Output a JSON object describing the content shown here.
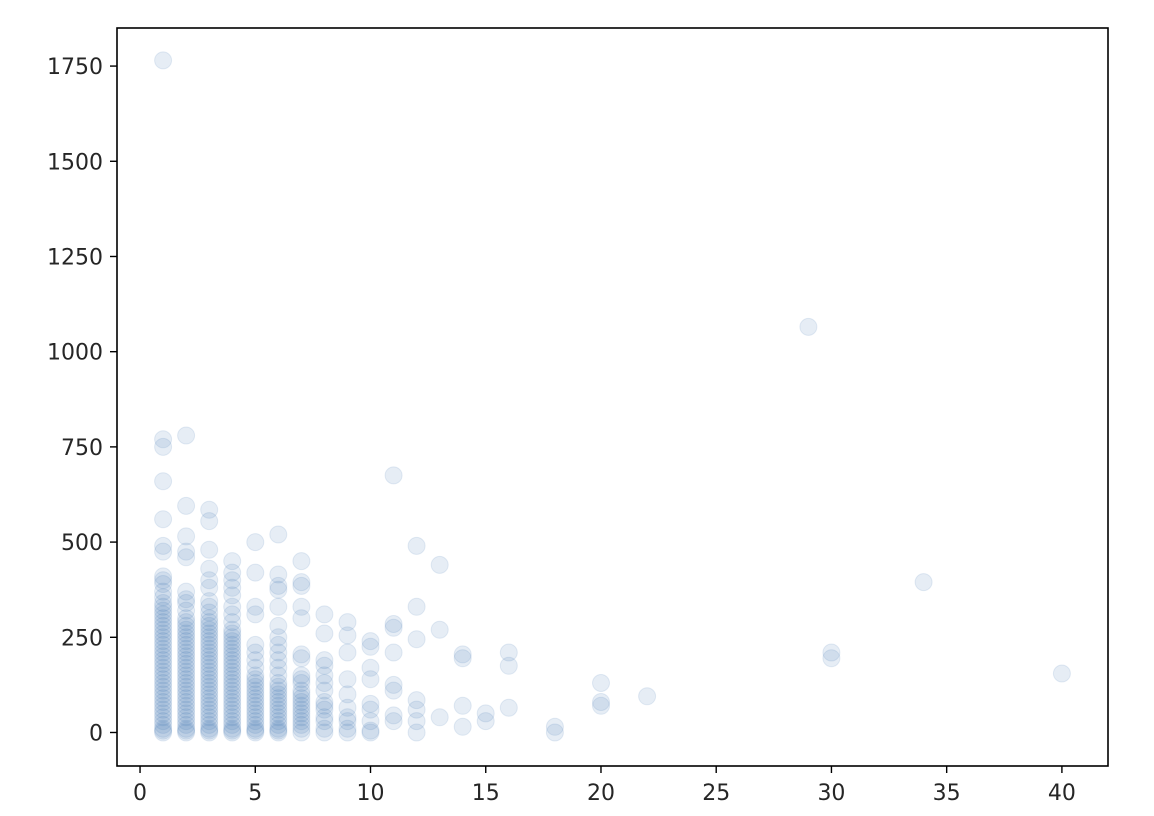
{
  "chart_data": {
    "type": "scatter",
    "title": "",
    "xlabel": "",
    "ylabel": "",
    "xlim": [
      -1,
      42
    ],
    "ylim": [
      -88,
      1850
    ],
    "xticks": [
      0,
      5,
      10,
      15,
      20,
      25,
      30,
      35,
      40
    ],
    "xtick_labels": [
      "0",
      "5",
      "10",
      "15",
      "20",
      "25",
      "30",
      "35",
      "40"
    ],
    "yticks": [
      0,
      250,
      500,
      750,
      1000,
      1250,
      1500,
      1750
    ],
    "ytick_labels": [
      "0",
      "250",
      "500",
      "750",
      "1000",
      "1250",
      "1500",
      "1750"
    ],
    "grid": false,
    "marker_color": "#3A76AF",
    "marker_opacity": 0.13,
    "points": [
      [
        1,
        1765
      ],
      [
        1,
        770
      ],
      [
        1,
        750
      ],
      [
        1,
        660
      ],
      [
        1,
        560
      ],
      [
        1,
        490
      ],
      [
        1,
        475
      ],
      [
        1,
        410
      ],
      [
        1,
        400
      ],
      [
        1,
        390
      ],
      [
        1,
        370
      ],
      [
        1,
        355
      ],
      [
        1,
        340
      ],
      [
        1,
        330
      ],
      [
        1,
        320
      ],
      [
        1,
        310
      ],
      [
        1,
        300
      ],
      [
        1,
        290
      ],
      [
        1,
        280
      ],
      [
        1,
        270
      ],
      [
        1,
        260
      ],
      [
        1,
        250
      ],
      [
        1,
        240
      ],
      [
        1,
        230
      ],
      [
        1,
        220
      ],
      [
        1,
        210
      ],
      [
        1,
        200
      ],
      [
        1,
        190
      ],
      [
        1,
        180
      ],
      [
        1,
        170
      ],
      [
        1,
        160
      ],
      [
        1,
        150
      ],
      [
        1,
        140
      ],
      [
        1,
        130
      ],
      [
        1,
        120
      ],
      [
        1,
        110
      ],
      [
        1,
        100
      ],
      [
        1,
        90
      ],
      [
        1,
        80
      ],
      [
        1,
        70
      ],
      [
        1,
        60
      ],
      [
        1,
        50
      ],
      [
        1,
        40
      ],
      [
        1,
        30
      ],
      [
        1,
        20
      ],
      [
        1,
        10
      ],
      [
        1,
        5
      ],
      [
        1,
        0
      ],
      [
        2,
        780
      ],
      [
        2,
        595
      ],
      [
        2,
        515
      ],
      [
        2,
        475
      ],
      [
        2,
        460
      ],
      [
        2,
        370
      ],
      [
        2,
        350
      ],
      [
        2,
        340
      ],
      [
        2,
        320
      ],
      [
        2,
        300
      ],
      [
        2,
        290
      ],
      [
        2,
        280
      ],
      [
        2,
        270
      ],
      [
        2,
        260
      ],
      [
        2,
        250
      ],
      [
        2,
        240
      ],
      [
        2,
        230
      ],
      [
        2,
        220
      ],
      [
        2,
        210
      ],
      [
        2,
        200
      ],
      [
        2,
        190
      ],
      [
        2,
        180
      ],
      [
        2,
        170
      ],
      [
        2,
        160
      ],
      [
        2,
        150
      ],
      [
        2,
        140
      ],
      [
        2,
        130
      ],
      [
        2,
        120
      ],
      [
        2,
        110
      ],
      [
        2,
        100
      ],
      [
        2,
        90
      ],
      [
        2,
        80
      ],
      [
        2,
        70
      ],
      [
        2,
        60
      ],
      [
        2,
        50
      ],
      [
        2,
        40
      ],
      [
        2,
        30
      ],
      [
        2,
        20
      ],
      [
        2,
        10
      ],
      [
        2,
        5
      ],
      [
        2,
        0
      ],
      [
        3,
        585
      ],
      [
        3,
        555
      ],
      [
        3,
        480
      ],
      [
        3,
        430
      ],
      [
        3,
        400
      ],
      [
        3,
        380
      ],
      [
        3,
        345
      ],
      [
        3,
        330
      ],
      [
        3,
        315
      ],
      [
        3,
        300
      ],
      [
        3,
        290
      ],
      [
        3,
        280
      ],
      [
        3,
        270
      ],
      [
        3,
        260
      ],
      [
        3,
        250
      ],
      [
        3,
        240
      ],
      [
        3,
        230
      ],
      [
        3,
        220
      ],
      [
        3,
        210
      ],
      [
        3,
        200
      ],
      [
        3,
        190
      ],
      [
        3,
        180
      ],
      [
        3,
        170
      ],
      [
        3,
        160
      ],
      [
        3,
        150
      ],
      [
        3,
        140
      ],
      [
        3,
        130
      ],
      [
        3,
        120
      ],
      [
        3,
        110
      ],
      [
        3,
        100
      ],
      [
        3,
        90
      ],
      [
        3,
        80
      ],
      [
        3,
        70
      ],
      [
        3,
        60
      ],
      [
        3,
        50
      ],
      [
        3,
        40
      ],
      [
        3,
        30
      ],
      [
        3,
        20
      ],
      [
        3,
        10
      ],
      [
        3,
        5
      ],
      [
        3,
        0
      ],
      [
        4,
        450
      ],
      [
        4,
        420
      ],
      [
        4,
        400
      ],
      [
        4,
        380
      ],
      [
        4,
        360
      ],
      [
        4,
        330
      ],
      [
        4,
        310
      ],
      [
        4,
        290
      ],
      [
        4,
        270
      ],
      [
        4,
        260
      ],
      [
        4,
        250
      ],
      [
        4,
        240
      ],
      [
        4,
        230
      ],
      [
        4,
        220
      ],
      [
        4,
        210
      ],
      [
        4,
        200
      ],
      [
        4,
        190
      ],
      [
        4,
        180
      ],
      [
        4,
        170
      ],
      [
        4,
        160
      ],
      [
        4,
        150
      ],
      [
        4,
        140
      ],
      [
        4,
        130
      ],
      [
        4,
        120
      ],
      [
        4,
        110
      ],
      [
        4,
        100
      ],
      [
        4,
        90
      ],
      [
        4,
        80
      ],
      [
        4,
        70
      ],
      [
        4,
        60
      ],
      [
        4,
        50
      ],
      [
        4,
        40
      ],
      [
        4,
        30
      ],
      [
        4,
        20
      ],
      [
        4,
        10
      ],
      [
        4,
        5
      ],
      [
        4,
        0
      ],
      [
        5,
        500
      ],
      [
        5,
        420
      ],
      [
        5,
        330
      ],
      [
        5,
        310
      ],
      [
        5,
        230
      ],
      [
        5,
        210
      ],
      [
        5,
        190
      ],
      [
        5,
        170
      ],
      [
        5,
        150
      ],
      [
        5,
        140
      ],
      [
        5,
        130
      ],
      [
        5,
        120
      ],
      [
        5,
        110
      ],
      [
        5,
        100
      ],
      [
        5,
        90
      ],
      [
        5,
        80
      ],
      [
        5,
        70
      ],
      [
        5,
        60
      ],
      [
        5,
        50
      ],
      [
        5,
        40
      ],
      [
        5,
        30
      ],
      [
        5,
        20
      ],
      [
        5,
        10
      ],
      [
        5,
        5
      ],
      [
        5,
        0
      ],
      [
        6,
        520
      ],
      [
        6,
        415
      ],
      [
        6,
        385
      ],
      [
        6,
        375
      ],
      [
        6,
        330
      ],
      [
        6,
        280
      ],
      [
        6,
        250
      ],
      [
        6,
        230
      ],
      [
        6,
        210
      ],
      [
        6,
        190
      ],
      [
        6,
        170
      ],
      [
        6,
        150
      ],
      [
        6,
        130
      ],
      [
        6,
        120
      ],
      [
        6,
        110
      ],
      [
        6,
        100
      ],
      [
        6,
        90
      ],
      [
        6,
        80
      ],
      [
        6,
        70
      ],
      [
        6,
        60
      ],
      [
        6,
        50
      ],
      [
        6,
        40
      ],
      [
        6,
        30
      ],
      [
        6,
        20
      ],
      [
        6,
        10
      ],
      [
        6,
        5
      ],
      [
        6,
        0
      ],
      [
        7,
        450
      ],
      [
        7,
        395
      ],
      [
        7,
        385
      ],
      [
        7,
        330
      ],
      [
        7,
        300
      ],
      [
        7,
        205
      ],
      [
        7,
        195
      ],
      [
        7,
        150
      ],
      [
        7,
        140
      ],
      [
        7,
        130
      ],
      [
        7,
        110
      ],
      [
        7,
        100
      ],
      [
        7,
        90
      ],
      [
        7,
        80
      ],
      [
        7,
        70
      ],
      [
        7,
        60
      ],
      [
        7,
        50
      ],
      [
        7,
        40
      ],
      [
        7,
        30
      ],
      [
        7,
        20
      ],
      [
        7,
        10
      ],
      [
        7,
        0
      ],
      [
        8,
        310
      ],
      [
        8,
        260
      ],
      [
        8,
        190
      ],
      [
        8,
        175
      ],
      [
        8,
        150
      ],
      [
        8,
        130
      ],
      [
        8,
        110
      ],
      [
        8,
        80
      ],
      [
        8,
        70
      ],
      [
        8,
        60
      ],
      [
        8,
        40
      ],
      [
        8,
        30
      ],
      [
        8,
        10
      ],
      [
        8,
        0
      ],
      [
        9,
        290
      ],
      [
        9,
        255
      ],
      [
        9,
        210
      ],
      [
        9,
        140
      ],
      [
        9,
        100
      ],
      [
        9,
        65
      ],
      [
        9,
        40
      ],
      [
        9,
        30
      ],
      [
        9,
        10
      ],
      [
        9,
        0
      ],
      [
        10,
        240
      ],
      [
        10,
        225
      ],
      [
        10,
        170
      ],
      [
        10,
        140
      ],
      [
        10,
        75
      ],
      [
        10,
        60
      ],
      [
        10,
        30
      ],
      [
        10,
        5
      ],
      [
        10,
        0
      ],
      [
        11,
        675
      ],
      [
        11,
        285
      ],
      [
        11,
        275
      ],
      [
        11,
        210
      ],
      [
        11,
        125
      ],
      [
        11,
        110
      ],
      [
        11,
        45
      ],
      [
        11,
        30
      ],
      [
        12,
        490
      ],
      [
        12,
        330
      ],
      [
        12,
        245
      ],
      [
        12,
        85
      ],
      [
        12,
        60
      ],
      [
        12,
        30
      ],
      [
        12,
        0
      ],
      [
        13,
        440
      ],
      [
        13,
        270
      ],
      [
        13,
        40
      ],
      [
        14,
        205
      ],
      [
        14,
        195
      ],
      [
        14,
        70
      ],
      [
        14,
        15
      ],
      [
        15,
        50
      ],
      [
        15,
        30
      ],
      [
        16,
        210
      ],
      [
        16,
        175
      ],
      [
        16,
        65
      ],
      [
        18,
        15
      ],
      [
        18,
        0
      ],
      [
        20,
        130
      ],
      [
        20,
        80
      ],
      [
        20,
        70
      ],
      [
        22,
        95
      ],
      [
        29,
        1065
      ],
      [
        30,
        210
      ],
      [
        30,
        195
      ],
      [
        34,
        395
      ],
      [
        40,
        155
      ]
    ]
  }
}
